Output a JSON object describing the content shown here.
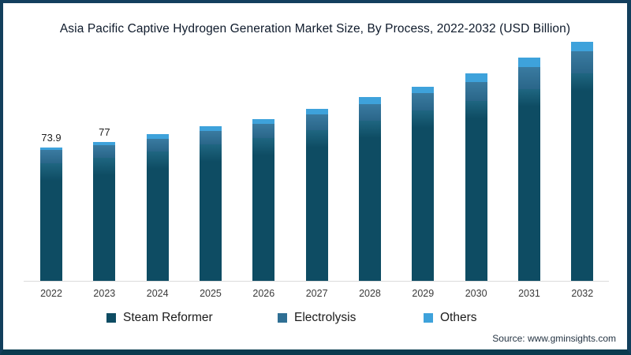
{
  "title": "Asia Pacific Captive Hydrogen Generation Market Size, By Process, 2022-2032 (USD Billion)",
  "source_note": "Source: www.gminsights.com",
  "colors": {
    "steam_reformer": "#0E4C63",
    "electrolysis": "#2F6F94",
    "others": "#3EA2DB",
    "frame_border": "#123F5C",
    "axis_line": "#DCDCDC"
  },
  "chart_data": {
    "type": "bar",
    "stacked": true,
    "title": "Asia Pacific Captive Hydrogen Generation Market Size, By Process, 2022-2032 (USD Billion)",
    "unit": "USD Billion",
    "categories": [
      "2022",
      "2023",
      "2024",
      "2025",
      "2026",
      "2027",
      "2028",
      "2029",
      "2030",
      "2031",
      "2032"
    ],
    "series": [
      {
        "name": "Steam Reformer",
        "color": "#0E4C63",
        "values": [
          65.3,
          68.1,
          71.6,
          75.6,
          79.1,
          83.4,
          88.6,
          94.3,
          99.8,
          106.0,
          114.7
        ]
      },
      {
        "name": "Electrolysis",
        "color": "#2F6F94",
        "values": [
          7.1,
          7.2,
          7.0,
          7.4,
          7.7,
          8.7,
          9.4,
          9.5,
          10.5,
          12.4,
          12.4
        ]
      },
      {
        "name": "Others",
        "color": "#3EA2DB",
        "values": [
          1.5,
          1.7,
          2.6,
          2.6,
          2.9,
          3.2,
          3.7,
          3.6,
          4.6,
          5.1,
          5.3
        ]
      }
    ],
    "totals": [
      73.9,
      77.0,
      81.2,
      85.6,
      89.7,
      95.3,
      101.7,
      107.4,
      114.9,
      123.5,
      132.4
    ],
    "data_labels": {
      "2022": "73.9",
      "2023": "77"
    },
    "ylim": [
      0,
      140
    ],
    "grid": false,
    "legend_position": "bottom",
    "xlabel": "",
    "ylabel": ""
  },
  "legend": {
    "items": [
      {
        "label": "Steam Reformer",
        "color": "#0E4C63"
      },
      {
        "label": "Electrolysis",
        "color": "#2F6F94"
      },
      {
        "label": "Others",
        "color": "#3EA2DB"
      }
    ]
  }
}
